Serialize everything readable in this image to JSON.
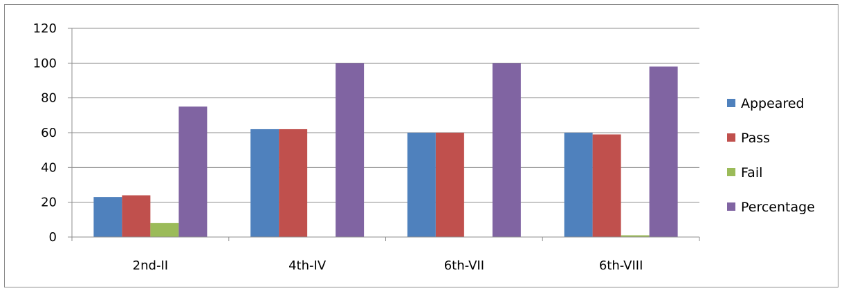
{
  "chart_data": {
    "type": "bar",
    "title": "",
    "xlabel": "",
    "ylabel": "",
    "categories": [
      "2nd-II",
      "4th-IV",
      "6th-VII",
      "6th-VIII"
    ],
    "series": [
      {
        "name": "Appeared",
        "values": [
          23,
          62,
          60,
          60
        ],
        "color": "#4f81bd"
      },
      {
        "name": "Pass",
        "values": [
          24,
          62,
          60,
          59
        ],
        "color": "#c0504d"
      },
      {
        "name": "Fail",
        "values": [
          8,
          0,
          0,
          1
        ],
        "color": "#9bbb59"
      },
      {
        "name": "Percentage",
        "values": [
          75,
          100,
          100,
          98
        ],
        "color": "#8064a2"
      }
    ],
    "ylim": [
      0,
      120
    ],
    "yticks": [
      0,
      20,
      40,
      60,
      80,
      100,
      120
    ],
    "grid": true,
    "legend": "right"
  }
}
